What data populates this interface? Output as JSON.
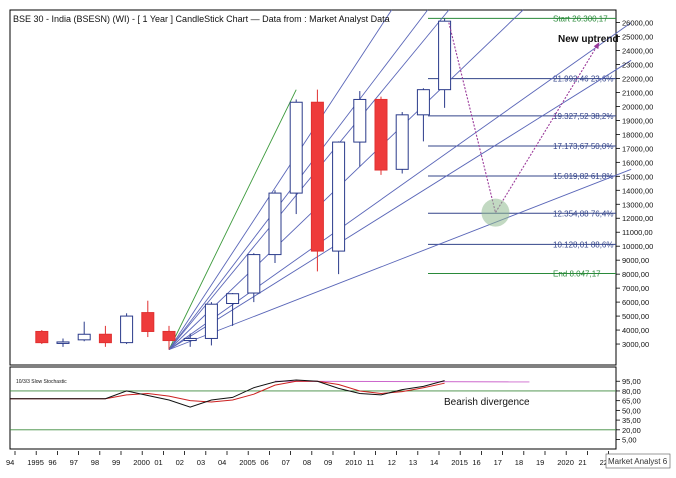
{
  "chart_data": {
    "type": "candlestick",
    "title": "BSE 30 - India (BSESN) (WI) - [ 1 Year ] CandleStick Chart — Data from : Market Analyst Data",
    "watermark": "Market Analyst 6",
    "annotations": [
      "New uptrend",
      "Bearish divergence"
    ],
    "x_tick_labels": [
      "94",
      "1995",
      "96",
      "97",
      "98",
      "99",
      "2000",
      "01",
      "02",
      "03",
      "04",
      "2005",
      "06",
      "07",
      "08",
      "09",
      "2010",
      "11",
      "12",
      "13",
      "14",
      "2015",
      "16",
      "17",
      "18",
      "19",
      "2020",
      "21",
      "22"
    ],
    "y_tick_labels": [
      "26000,00",
      "25000,00",
      "24000,00",
      "23000,00",
      "22000,00",
      "21000,00",
      "20000,00",
      "19000,00",
      "18000,00",
      "17000,00",
      "16000,00",
      "15000,00",
      "14000,00",
      "13000,00",
      "12000,00",
      "11000,00",
      "10000,00",
      "9000,00",
      "8000,00",
      "7000,00",
      "6000,00",
      "5000,00",
      "4000,00",
      "3000,00"
    ],
    "ylim": [
      1500,
      26900
    ],
    "candles": [
      {
        "year": 1995,
        "open": 3900,
        "high": 4000,
        "low": 3000,
        "close": 3100
      },
      {
        "year": 1996,
        "open": 3100,
        "high": 3400,
        "low": 2800,
        "close": 3150
      },
      {
        "year": 1997,
        "open": 3300,
        "high": 4600,
        "low": 3200,
        "close": 3700
      },
      {
        "year": 1998,
        "open": 3700,
        "high": 4300,
        "low": 2800,
        "close": 3100
      },
      {
        "year": 1999,
        "open": 3100,
        "high": 5200,
        "low": 3000,
        "close": 5000
      },
      {
        "year": 2000,
        "open": 5250,
        "high": 6100,
        "low": 3500,
        "close": 3900
      },
      {
        "year": 2001,
        "open": 3900,
        "high": 4300,
        "low": 2600,
        "close": 3250
      },
      {
        "year": 2002,
        "open": 3250,
        "high": 3750,
        "low": 2800,
        "close": 3400
      },
      {
        "year": 2003,
        "open": 3400,
        "high": 6000,
        "low": 2900,
        "close": 5850
      },
      {
        "year": 2004,
        "open": 5900,
        "high": 6650,
        "low": 4300,
        "close": 6600
      },
      {
        "year": 2005,
        "open": 6650,
        "high": 9500,
        "low": 6000,
        "close": 9400
      },
      {
        "year": 2006,
        "open": 9400,
        "high": 14000,
        "low": 8800,
        "close": 13800
      },
      {
        "year": 2007,
        "open": 13800,
        "high": 20500,
        "low": 12300,
        "close": 20300
      },
      {
        "year": 2008,
        "open": 20300,
        "high": 21200,
        "low": 8200,
        "close": 9650
      },
      {
        "year": 2009,
        "open": 9650,
        "high": 17500,
        "low": 8000,
        "close": 17450
      },
      {
        "year": 2010,
        "open": 17450,
        "high": 21100,
        "low": 15700,
        "close": 20500
      },
      {
        "year": 2011,
        "open": 20500,
        "high": 20700,
        "low": 15100,
        "close": 15450
      },
      {
        "year": 2012,
        "open": 15500,
        "high": 19600,
        "low": 15200,
        "close": 19400
      },
      {
        "year": 2013,
        "open": 19400,
        "high": 21300,
        "low": 17500,
        "close": 21200
      },
      {
        "year": 2014,
        "open": 21200,
        "high": 26300,
        "low": 19900,
        "close": 26100
      }
    ],
    "fib_levels": [
      {
        "label": "Start 26.300,17",
        "value": 26300.17,
        "color": "#2a8a3a"
      },
      {
        "label": "21.992,46 23,6%",
        "value": 21992.46,
        "color": "#33448a"
      },
      {
        "label": "19.327,52 38,2%",
        "value": 19327.52,
        "color": "#33448a"
      },
      {
        "label": "17.173,67 50,0%",
        "value": 17173.67,
        "color": "#33448a"
      },
      {
        "label": "15.019,82 61,8%",
        "value": 15019.82,
        "color": "#33448a"
      },
      {
        "label": "12.354,88 76,4%",
        "value": 12354.88,
        "color": "#33448a"
      },
      {
        "label": "10.128,01 88,6%",
        "value": 10128.01,
        "color": "#33448a"
      },
      {
        "label": "End 8.047,17",
        "value": 8047.17,
        "color": "#2a8a3a"
      }
    ],
    "fan_lines": [
      {
        "x1": 2001,
        "y1": 2600,
        "x2": 2007,
        "y2": 21200,
        "color": "#3c9a3c"
      },
      {
        "x1": 2001,
        "y1": 2600,
        "x2": 2011.5,
        "y2": 26900,
        "color": "#5a66b8"
      },
      {
        "x1": 2001,
        "y1": 2600,
        "x2": 2013.2,
        "y2": 26900,
        "color": "#5a66b8"
      },
      {
        "x1": 2001,
        "y1": 2600,
        "x2": 2014.2,
        "y2": 26900,
        "color": "#5a66b8"
      },
      {
        "x1": 2001,
        "y1": 2600,
        "x2": 2017.7,
        "y2": 26900,
        "color": "#5a66b8"
      },
      {
        "x1": 2001,
        "y1": 2600,
        "x2": 2022.8,
        "y2": 26000,
        "color": "#5a66b8"
      },
      {
        "x1": 2001,
        "y1": 2600,
        "x2": 2022.8,
        "y2": 23300,
        "color": "#5a66b8"
      },
      {
        "x1": 2001,
        "y1": 2600,
        "x2": 2022.8,
        "y2": 15500,
        "color": "#5a66b8"
      }
    ],
    "projection": [
      {
        "x": 2014.2,
        "y": 26000
      },
      {
        "x": 2016.4,
        "y": 12400
      },
      {
        "x": 2021.3,
        "y": 24600
      }
    ],
    "target_circle": {
      "x": 2016.4,
      "y": 12400
    },
    "stochastic": {
      "label": "10/3/3 Slow Stochastic",
      "y_tick_labels": [
        "95,00",
        "80,00",
        "65,00",
        "50,00",
        "35,00",
        "20,00",
        "5,00"
      ],
      "ylim": [
        -5,
        100
      ],
      "levels": [
        80,
        20
      ],
      "k_line": {
        "color": "#111111",
        "points": [
          [
            1993.5,
            68
          ],
          [
            1998,
            68
          ],
          [
            1999,
            80
          ],
          [
            2000,
            73
          ],
          [
            2001,
            66
          ],
          [
            2002,
            55
          ],
          [
            2003,
            66
          ],
          [
            2004,
            70
          ],
          [
            2005,
            85
          ],
          [
            2006,
            94
          ],
          [
            2007,
            97
          ],
          [
            2008,
            95
          ],
          [
            2009,
            84
          ],
          [
            2010,
            76
          ],
          [
            2011,
            74
          ],
          [
            2012,
            82
          ],
          [
            2013,
            87
          ],
          [
            2014,
            96
          ]
        ]
      },
      "d_line": {
        "color": "#cc2020",
        "points": [
          [
            1993.5,
            68
          ],
          [
            1998,
            68
          ],
          [
            1999,
            74
          ],
          [
            2000,
            76
          ],
          [
            2001,
            72
          ],
          [
            2002,
            65
          ],
          [
            2003,
            63
          ],
          [
            2004,
            66
          ],
          [
            2005,
            75
          ],
          [
            2006,
            89
          ],
          [
            2007,
            95
          ],
          [
            2008,
            95
          ],
          [
            2009,
            90
          ],
          [
            2010,
            80
          ],
          [
            2011,
            76
          ],
          [
            2012,
            79
          ],
          [
            2013,
            85
          ],
          [
            2014,
            92
          ]
        ]
      },
      "pink_line": {
        "color": "#cc66cc",
        "points": [
          [
            2006,
            95
          ],
          [
            2018,
            94
          ]
        ]
      }
    }
  }
}
